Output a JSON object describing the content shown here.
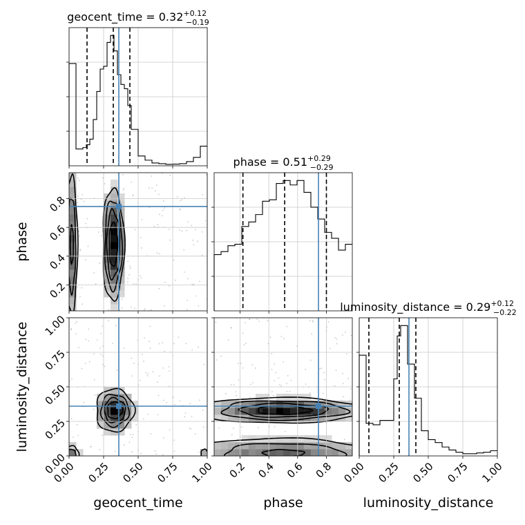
{
  "colors": {
    "truth": "#4682b4",
    "ink": "#000000",
    "grid": "#c8c8c8",
    "scatter": "#9a9a9a"
  },
  "chart_data": {
    "type": "corner",
    "parameters": [
      "geocent_time",
      "phase",
      "luminosity_distance"
    ],
    "truths": {
      "geocent_time": 0.36,
      "phase": 0.745,
      "luminosity_distance": 0.36
    },
    "titles": [
      {
        "param": "geocent_time",
        "name": "geocent_time",
        "value": "0.32",
        "plus": "+0.12",
        "minus": "−0.19"
      },
      {
        "param": "phase",
        "name": "phase",
        "value": "0.51",
        "plus": "+0.29",
        "minus": "−0.29"
      },
      {
        "param": "luminosity_distance",
        "name": "luminosity_distance",
        "value": "0.29",
        "plus": "+0.12",
        "minus": "−0.22"
      }
    ],
    "axes": {
      "geocent_time": {
        "range": [
          0,
          1
        ],
        "ticks": [
          0,
          0.25,
          0.5,
          0.75,
          1
        ],
        "tick_labels": [
          "0.00",
          "0.25",
          "0.50",
          "0.75",
          "1.00"
        ]
      },
      "phase": {
        "range": [
          0.02,
          0.98
        ],
        "ticks": [
          0.2,
          0.4,
          0.6,
          0.8
        ],
        "tick_labels": [
          "0.2",
          "0.4",
          "0.6",
          "0.8"
        ]
      },
      "luminosity_distance": {
        "range": [
          0,
          1
        ],
        "ticks": [
          0,
          0.25,
          0.5,
          0.75,
          1
        ],
        "tick_labels": [
          "0.00",
          "0.25",
          "0.50",
          "0.75",
          "1.00"
        ]
      }
    },
    "histograms": {
      "geocent_time": {
        "bin_edges": [
          0,
          0.05,
          0.1,
          0.125,
          0.15,
          0.175,
          0.2,
          0.225,
          0.25,
          0.275,
          0.3,
          0.325,
          0.35,
          0.375,
          0.4,
          0.425,
          0.45,
          0.5,
          0.55,
          0.6,
          0.65,
          0.7,
          0.75,
          0.8,
          0.85,
          0.9,
          0.95,
          1.0
        ],
        "counts": [
          0.73,
          0.12,
          0.13,
          0.15,
          0.19,
          0.33,
          0.53,
          0.69,
          0.71,
          0.88,
          0.93,
          0.82,
          0.65,
          0.58,
          0.55,
          0.43,
          0.26,
          0.07,
          0.04,
          0.02,
          0.015,
          0.01,
          0.012,
          0.015,
          0.03,
          0.06,
          0.14
        ],
        "quantiles": [
          0.13,
          0.32,
          0.44
        ]
      },
      "phase": {
        "bin_edges": [
          0.02,
          0.068,
          0.116,
          0.164,
          0.212,
          0.26,
          0.308,
          0.356,
          0.404,
          0.452,
          0.5,
          0.548,
          0.596,
          0.644,
          0.692,
          0.74,
          0.788,
          0.836,
          0.884,
          0.932,
          0.98
        ],
        "counts": [
          0.38,
          0.4,
          0.44,
          0.45,
          0.57,
          0.6,
          0.65,
          0.74,
          0.75,
          0.86,
          0.88,
          0.85,
          0.88,
          0.8,
          0.7,
          0.62,
          0.53,
          0.49,
          0.41,
          0.45
        ],
        "quantiles": [
          0.22,
          0.51,
          0.8
        ]
      },
      "luminosity_distance": {
        "bin_edges": [
          0,
          0.05,
          0.1,
          0.15,
          0.2,
          0.25,
          0.275,
          0.3,
          0.35,
          0.4,
          0.45,
          0.5,
          0.55,
          0.6,
          0.65,
          0.7,
          0.75,
          0.8,
          0.85,
          0.9,
          0.95,
          1.0
        ],
        "counts": [
          0.68,
          0.22,
          0.21,
          0.24,
          0.24,
          0.52,
          0.81,
          0.88,
          0.62,
          0.39,
          0.17,
          0.11,
          0.09,
          0.06,
          0.04,
          0.025,
          0.015,
          0.015,
          0.02,
          0.025,
          0.035
        ],
        "quantiles": [
          0.07,
          0.29,
          0.41
        ]
      }
    },
    "pair_densities": [
      {
        "x": "geocent_time",
        "y": "phase",
        "cores": [
          {
            "x": 0.32,
            "y": 0.48,
            "sx": 0.04,
            "sy": 0.2,
            "w": 1
          },
          {
            "x": 0.02,
            "y": 0.48,
            "sx": 0.025,
            "sy": 0.3,
            "w": 0.55
          }
        ],
        "contour_levels": [
          0.15,
          0.3,
          0.5,
          0.75
        ]
      },
      {
        "x": "geocent_time",
        "y": "luminosity_distance",
        "cores": [
          {
            "x": 0.33,
            "y": 0.33,
            "sx": 0.07,
            "sy": 0.08,
            "w": 1
          },
          {
            "x": 0.02,
            "y": 0.01,
            "sx": 0.03,
            "sy": 0.04,
            "w": 0.55
          },
          {
            "x": 0.98,
            "y": 0.01,
            "sx": 0.02,
            "sy": 0.03,
            "w": 0.35
          }
        ],
        "contour_levels": [
          0.15,
          0.35,
          0.55,
          0.75
        ]
      },
      {
        "x": "phase",
        "y": "luminosity_distance",
        "cores": [
          {
            "x": 0.5,
            "y": 0.33,
            "sx": 0.28,
            "sy": 0.045,
            "w": 1
          },
          {
            "x": 0.5,
            "y": 0.02,
            "sx": 0.35,
            "sy": 0.06,
            "w": 0.6
          }
        ],
        "contour_levels": [
          0.12,
          0.3,
          0.55,
          0.8
        ]
      }
    ]
  }
}
